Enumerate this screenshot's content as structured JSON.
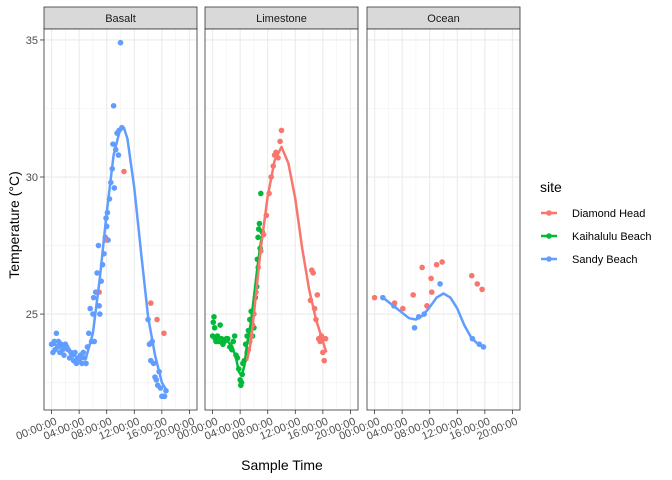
{
  "chart_data": {
    "type": "scatter",
    "xlabel": "Sample Time",
    "ylabel": "Temperature (°C)",
    "x_ticks": [
      "00:00:00",
      "04:00:00",
      "08:00:00",
      "12:00:00",
      "16:00:00",
      "20:00:00"
    ],
    "x_tick_hours": [
      0,
      4,
      8,
      12,
      16,
      20
    ],
    "xlim_hours": [
      -1.1,
      21.1
    ],
    "y_ticks": [
      25,
      30,
      35
    ],
    "ylim": [
      21.5,
      35.4
    ],
    "grid": true,
    "legend": {
      "title": "site",
      "position": "right",
      "entries": [
        "Diamond Head",
        "Kaihalulu Beach",
        "Sandy Beach"
      ]
    },
    "colors": {
      "Diamond Head": "#F8766D",
      "Kaihalulu Beach": "#00BA38",
      "Sandy Beach": "#619CFF"
    },
    "panels": [
      {
        "name": "Basalt",
        "points": [
          {
            "site": "Sandy Beach",
            "pts": [
              [
                0,
                23.9
              ],
              [
                0.2,
                23.6
              ],
              [
                0.4,
                24.0
              ],
              [
                0.5,
                23.7
              ],
              [
                0.7,
                24.3
              ],
              [
                0.9,
                23.8
              ],
              [
                1.0,
                24.0
              ],
              [
                1.2,
                23.6
              ],
              [
                1.4,
                23.9
              ],
              [
                1.6,
                23.7
              ],
              [
                1.8,
                23.5
              ],
              [
                2.0,
                23.9
              ],
              [
                2.2,
                23.8
              ],
              [
                2.4,
                23.7
              ],
              [
                2.6,
                23.4
              ],
              [
                2.8,
                23.6
              ],
              [
                3.0,
                23.5
              ],
              [
                3.2,
                23.3
              ],
              [
                3.4,
                23.6
              ],
              [
                3.6,
                23.2
              ],
              [
                3.8,
                23.4
              ],
              [
                4.0,
                23.3
              ],
              [
                4.2,
                23.5
              ],
              [
                4.4,
                23.2
              ],
              [
                4.6,
                23.6
              ],
              [
                4.8,
                23.4
              ],
              [
                5.0,
                23.2
              ],
              [
                5.2,
                23.8
              ],
              [
                5.4,
                24.3
              ],
              [
                5.6,
                25.2
              ],
              [
                5.8,
                24.0
              ],
              [
                6.0,
                25.0
              ],
              [
                6.1,
                25.6
              ],
              [
                6.2,
                24.0
              ],
              [
                6.4,
                25.8
              ],
              [
                6.6,
                26.5
              ],
              [
                6.8,
                27.5
              ],
              [
                6.9,
                25.3
              ],
              [
                7.0,
                25.0
              ],
              [
                7.2,
                26.2
              ],
              [
                7.4,
                26.8
              ],
              [
                7.6,
                27.2
              ],
              [
                7.8,
                27.8
              ],
              [
                7.9,
                28.5
              ],
              [
                8.0,
                28.2
              ],
              [
                8.1,
                28.7
              ],
              [
                8.2,
                27.7
              ],
              [
                8.4,
                29.2
              ],
              [
                8.6,
                29.8
              ],
              [
                8.8,
                30.3
              ],
              [
                8.9,
                31.2
              ],
              [
                9.0,
                32.6
              ],
              [
                9.1,
                29.6
              ],
              [
                9.3,
                31.0
              ],
              [
                9.5,
                31.6
              ],
              [
                9.7,
                30.8
              ],
              [
                9.8,
                31.7
              ],
              [
                10.0,
                34.9
              ],
              [
                10.2,
                31.8
              ],
              [
                14.0,
                24.8
              ],
              [
                14.2,
                23.9
              ],
              [
                14.4,
                23.3
              ],
              [
                14.6,
                24.0
              ],
              [
                14.8,
                23.2
              ],
              [
                15.0,
                22.7
              ],
              [
                15.2,
                22.6
              ],
              [
                15.4,
                22.4
              ],
              [
                15.6,
                22.9
              ],
              [
                15.8,
                22.3
              ],
              [
                16.0,
                22.0
              ],
              [
                16.2,
                22.0
              ],
              [
                16.4,
                22.0
              ],
              [
                16.6,
                22.2
              ]
            ]
          },
          {
            "site": "Diamond Head",
            "pts": [
              [
                6.9,
                25.8
              ],
              [
                7.8,
                27.7
              ],
              [
                10.5,
                30.2
              ],
              [
                14.4,
                25.4
              ],
              [
                15.3,
                24.8
              ],
              [
                16.3,
                24.3
              ]
            ]
          }
        ],
        "curves": [
          {
            "site": "Sandy Beach",
            "pts": [
              [
                0,
                23.9
              ],
              [
                1,
                23.85
              ],
              [
                2,
                23.75
              ],
              [
                3,
                23.55
              ],
              [
                4,
                23.35
              ],
              [
                5,
                23.4
              ],
              [
                6,
                24.3
              ],
              [
                7,
                26.3
              ],
              [
                8,
                28.7
              ],
              [
                9,
                30.8
              ],
              [
                10,
                31.8
              ],
              [
                10.5,
                31.8
              ],
              [
                11,
                31.4
              ],
              [
                12,
                29.6
              ],
              [
                13,
                27.2
              ],
              [
                14,
                24.9
              ],
              [
                15,
                23.5
              ],
              [
                16,
                22.5
              ],
              [
                16.7,
                22.2
              ]
            ]
          }
        ]
      },
      {
        "name": "Limestone",
        "points": [
          {
            "site": "Kaihalulu Beach",
            "pts": [
              [
                0,
                24.2
              ],
              [
                0.1,
                24.7
              ],
              [
                0.2,
                24.9
              ],
              [
                0.3,
                24.5
              ],
              [
                0.4,
                24.1
              ],
              [
                0.5,
                24.0
              ],
              [
                0.7,
                24.2
              ],
              [
                0.9,
                24.0
              ],
              [
                1.1,
                24.6
              ],
              [
                1.3,
                24.1
              ],
              [
                1.5,
                23.9
              ],
              [
                1.7,
                24.0
              ],
              [
                2.0,
                24.1
              ],
              [
                2.2,
                24.1
              ],
              [
                2.5,
                23.8
              ],
              [
                2.8,
                23.7
              ],
              [
                3.0,
                24.0
              ],
              [
                3.2,
                24.2
              ],
              [
                3.4,
                23.5
              ],
              [
                3.6,
                23.4
              ],
              [
                3.8,
                23.0
              ],
              [
                4.0,
                22.6
              ],
              [
                4.1,
                22.4
              ],
              [
                4.2,
                22.5
              ],
              [
                4.3,
                22.8
              ],
              [
                4.4,
                23.2
              ],
              [
                4.6,
                23.3
              ],
              [
                4.8,
                23.9
              ],
              [
                5.0,
                24.2
              ],
              [
                5.2,
                24.4
              ],
              [
                5.4,
                24.8
              ],
              [
                5.6,
                25.1
              ],
              [
                5.8,
                24.2
              ],
              [
                6.0,
                24.5
              ],
              [
                6.2,
                25.6
              ],
              [
                6.4,
                26.0
              ],
              [
                6.5,
                27.0
              ],
              [
                6.6,
                27.8
              ],
              [
                6.7,
                28.1
              ],
              [
                6.8,
                28.3
              ],
              [
                6.9,
                27.4
              ],
              [
                7.0,
                29.4
              ],
              [
                7.2,
                28.0
              ]
            ]
          },
          {
            "site": "Diamond Head",
            "pts": [
              [
                5.0,
                23.6
              ],
              [
                5.2,
                23.7
              ],
              [
                5.4,
                24.0
              ],
              [
                5.6,
                24.2
              ],
              [
                5.8,
                24.6
              ],
              [
                6.0,
                25.0
              ],
              [
                6.3,
                25.8
              ],
              [
                6.6,
                26.7
              ],
              [
                7.0,
                27.3
              ],
              [
                7.4,
                27.9
              ],
              [
                7.8,
                28.6
              ],
              [
                8.2,
                29.4
              ],
              [
                8.5,
                30.0
              ],
              [
                8.8,
                30.4
              ],
              [
                9.0,
                30.8
              ],
              [
                9.2,
                30.9
              ],
              [
                9.5,
                30.7
              ],
              [
                9.8,
                31.3
              ],
              [
                10.0,
                31.7
              ],
              [
                14.2,
                25.5
              ],
              [
                14.4,
                26.6
              ],
              [
                14.6,
                26.5
              ],
              [
                14.8,
                25.2
              ],
              [
                15.0,
                24.8
              ],
              [
                15.2,
                25.7
              ],
              [
                15.4,
                24.1
              ],
              [
                15.6,
                24.0
              ],
              [
                15.8,
                24.2
              ],
              [
                16.0,
                23.6
              ],
              [
                16.2,
                23.3
              ],
              [
                16.4,
                24.1
              ]
            ]
          }
        ],
        "curves": [
          {
            "site": "Kaihalulu Beach",
            "pts": [
              [
                0,
                24.2
              ],
              [
                1,
                24.15
              ],
              [
                2,
                24.05
              ],
              [
                2.8,
                23.85
              ],
              [
                3.4,
                23.4
              ],
              [
                3.8,
                22.9
              ],
              [
                4.2,
                22.75
              ],
              [
                4.6,
                23.1
              ],
              [
                5.0,
                23.9
              ],
              [
                5.5,
                24.6
              ],
              [
                6.0,
                25.6
              ],
              [
                6.5,
                26.7
              ],
              [
                7.0,
                27.6
              ],
              [
                7.3,
                28.0
              ]
            ]
          },
          {
            "site": "Diamond Head",
            "pts": [
              [
                5.0,
                23.3
              ],
              [
                5.5,
                23.9
              ],
              [
                6.0,
                25.0
              ],
              [
                7.0,
                27.4
              ],
              [
                8.0,
                29.3
              ],
              [
                9.0,
                30.6
              ],
              [
                10.0,
                31.1
              ],
              [
                11.0,
                30.5
              ],
              [
                12.0,
                29.2
              ],
              [
                13.0,
                27.4
              ],
              [
                14.0,
                25.9
              ],
              [
                15.0,
                24.8
              ],
              [
                16.0,
                24.0
              ],
              [
                16.5,
                23.6
              ]
            ]
          }
        ]
      },
      {
        "name": "Ocean",
        "points": [
          {
            "site": "Sandy Beach",
            "pts": [
              [
                1.2,
                25.6
              ],
              [
                2.8,
                25.3
              ],
              [
                5.8,
                24.5
              ],
              [
                6.4,
                24.9
              ],
              [
                7.2,
                25.0
              ],
              [
                9.5,
                26.1
              ],
              [
                14.2,
                24.1
              ],
              [
                15.2,
                23.9
              ],
              [
                15.8,
                23.8
              ]
            ]
          },
          {
            "site": "Diamond Head",
            "pts": [
              [
                0,
                25.6
              ],
              [
                2.9,
                25.4
              ],
              [
                4.1,
                25.2
              ],
              [
                5.6,
                25.7
              ],
              [
                6.9,
                26.7
              ],
              [
                7.6,
                25.3
              ],
              [
                8.2,
                26.3
              ],
              [
                8.3,
                25.8
              ],
              [
                9.0,
                26.8
              ],
              [
                9.8,
                26.9
              ],
              [
                14.1,
                26.4
              ],
              [
                14.9,
                26.1
              ],
              [
                15.6,
                25.9
              ]
            ]
          }
        ],
        "curves": [
          {
            "site": "Sandy Beach",
            "pts": [
              [
                1.2,
                25.6
              ],
              [
                2.5,
                25.35
              ],
              [
                4,
                25.05
              ],
              [
                5,
                24.85
              ],
              [
                6,
                24.8
              ],
              [
                7,
                24.95
              ],
              [
                8,
                25.25
              ],
              [
                9,
                25.6
              ],
              [
                10,
                25.75
              ],
              [
                11,
                25.6
              ],
              [
                12,
                25.2
              ],
              [
                13,
                24.6
              ],
              [
                14,
                24.15
              ],
              [
                15,
                23.9
              ],
              [
                15.8,
                23.8
              ]
            ]
          }
        ]
      }
    ]
  }
}
